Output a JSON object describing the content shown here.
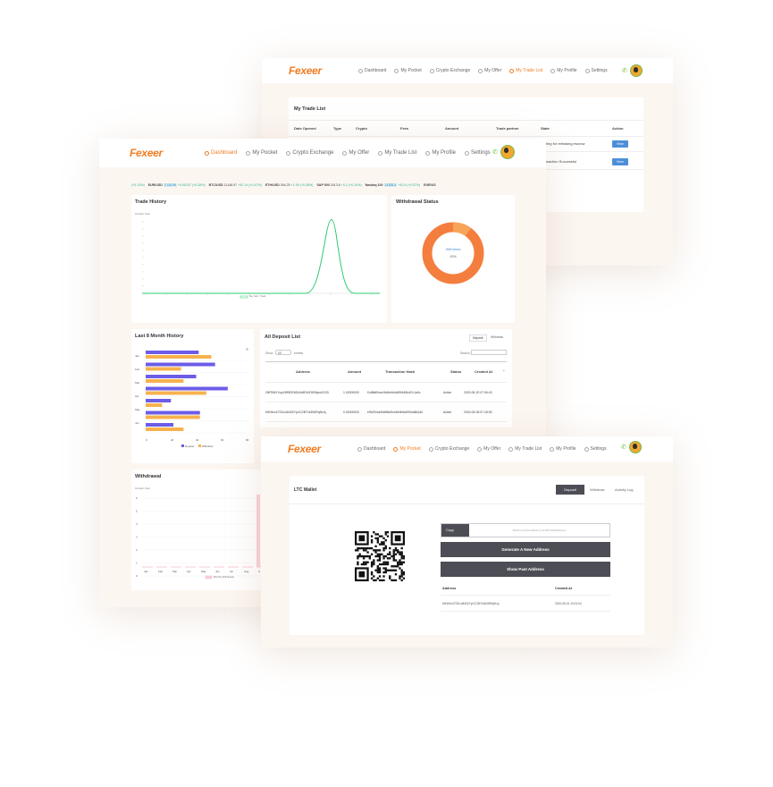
{
  "logo": "Fexeer",
  "colors": {
    "brand": "#f07c22",
    "deposit": "#6c5ce7",
    "withdraw": "#f7b24d",
    "trade_line": "#2ecc71",
    "accent_blue": "#4c8fd8"
  },
  "nav1": {
    "items": [
      "Dashboard",
      "My Pocket",
      "Crypto Exchange",
      "My Offer",
      "My Trade List",
      "My Profile",
      "Settings"
    ],
    "active": 4
  },
  "nav2": {
    "items": [
      "Dashboard",
      "My Pocket",
      "Crypto Exchange",
      "My Offer",
      "My Trade List",
      "My Profile",
      "Settings"
    ],
    "active": 0
  },
  "nav3": {
    "items": [
      "Dashboard",
      "My Pocket",
      "Crypto Exchange",
      "My Offer",
      "My Trade List",
      "My Profile",
      "Settings"
    ],
    "active": 1
  },
  "trades": {
    "title": "My Trade List",
    "headers": [
      "Date Opened",
      "Type",
      "Crypto",
      "Fees",
      "Amount",
      "Trade partner",
      "State",
      "Action"
    ],
    "rows": [
      {
        "state": "waiting for releasing escrow",
        "action": "View"
      },
      {
        "state": "transaction Successful",
        "action": "View"
      }
    ]
  },
  "ticker": [
    {
      "pair": "",
      "price": "",
      "change": "(+0.13%)"
    },
    {
      "pair": "EUR/USD",
      "badge": "1.18749",
      "price": "",
      "change": "+0.00137 (+0.28%)"
    },
    {
      "pair": "BTC/USD",
      "price": "11148.97",
      "change": "+52.14 (+0.47%)"
    },
    {
      "pair": "ETH/USD",
      "price": "394.25",
      "change": "+1.09 (+0.28%)"
    },
    {
      "pair": "S&P 500",
      "price": "3413.6",
      "change": "+0.2 (+0.13%)"
    },
    {
      "pair": "Nasdaq 100",
      "badge": "11335.3",
      "price": "",
      "change": "+42.5 (+0.37%)"
    },
    {
      "pair": "EUR/US",
      "price": "",
      "change": ""
    }
  ],
  "trade_history": {
    "title": "Trade History",
    "sub": "Current Year",
    "legend": "Buy Sell - Trade"
  },
  "withdrawal_status": {
    "title": "Withdrawal Status",
    "label": "Withdraw",
    "value": "10%"
  },
  "eight_month": {
    "title": "Last 8 Month History",
    "legend_a": "Deposit",
    "legend_b": "Withdraw",
    "months": [
      "Jan",
      "Feb",
      "Mar",
      "Apr",
      "May",
      "Jun"
    ],
    "xticks": [
      "0",
      "20",
      "40",
      "60",
      "80"
    ]
  },
  "deposit_list": {
    "title": "All Deposit List",
    "tab1": "Deposit",
    "tab2": "Withdraw",
    "show": "Show",
    "entries": "10",
    "entries_label": "entries",
    "search": "Search:",
    "headers": [
      "Address",
      "Amount",
      "Transaction Hash",
      "Status",
      "Created At"
    ],
    "rows": [
      [
        "2NFBMYVuyV8RfDE6DUhMEWZHE8qnAGCB",
        "1.00000000",
        "f1d8fdf0eac0b4fefd4d6f0f44f6c67c1a0c",
        "Active",
        "2020-06-20 07:06:43"
      ],
      [
        "MKWvx47S2Lw840ZYyLfC2BTx6DWRqNUq",
        "0.00000000",
        "e9fd7b4a0fd6f8ef2cb6e9b9a0f0f4d6b2a0",
        "Active",
        "2020-06-08 07:18:53"
      ]
    ]
  },
  "withdrawal": {
    "title": "Withdrawal",
    "sub": "Current Year",
    "yticks": [
      "6",
      "5",
      "4",
      "3",
      "2",
      "1",
      "0"
    ],
    "months": [
      "Jan",
      "Feb",
      "Mar",
      "Apr",
      "May",
      "Jun",
      "Jul",
      "Aug",
      "S"
    ],
    "legend": "Monthly Withdrawal"
  },
  "wallet": {
    "title": "LTC Wallet",
    "tabs": [
      "Deposit",
      "Withdraw",
      "Activity Log"
    ],
    "copy": "Copy",
    "address_value": "MKWvx47S2Lw840ZYyLfC2BTx6DWRqNUq",
    "generate": "Generate A New Address",
    "show_past": "Show Past Address",
    "col_address": "Address",
    "col_created": "Created At",
    "row_address": "MKWvx47S2Lw840ZYyLfC2BTx6DWRqNUq",
    "row_created": "2020-06-01 10:01:04"
  }
}
